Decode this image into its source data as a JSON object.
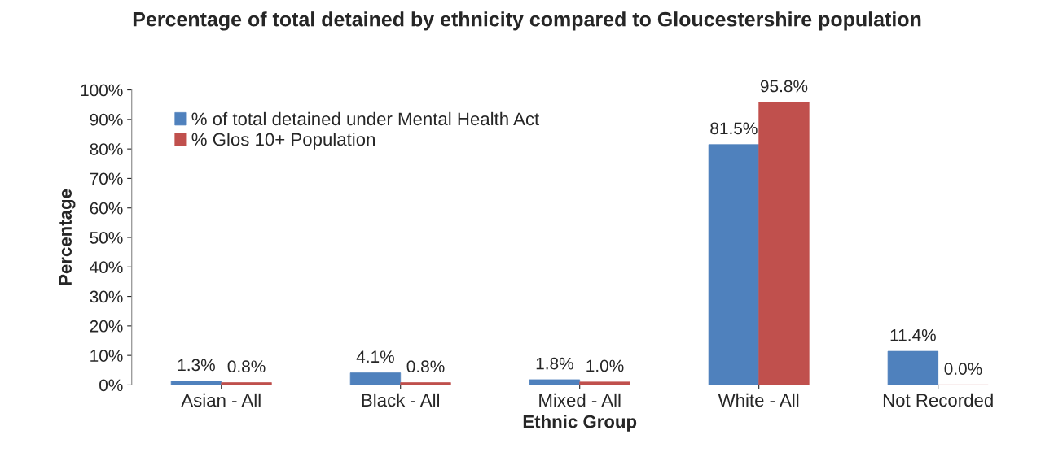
{
  "chart_data": {
    "type": "bar",
    "title": "Percentage of total detained by ethnicity compared to Gloucestershire population",
    "xlabel": "Ethnic Group",
    "ylabel": "Percentage",
    "categories": [
      "Asian - All",
      "Black - All",
      "Mixed - All",
      "White - All",
      "Not Recorded"
    ],
    "series": [
      {
        "name": "% of total detained under Mental Health Act",
        "color": "#4f81bd",
        "values": [
          1.3,
          4.1,
          1.8,
          81.5,
          11.4
        ],
        "value_labels": [
          "1.3%",
          "4.1%",
          "1.8%",
          "81.5%",
          "11.4%"
        ]
      },
      {
        "name": "% Glos 10+ Population",
        "color": "#c0504d",
        "values": [
          0.8,
          0.8,
          1.0,
          95.8,
          0.0
        ],
        "value_labels": [
          "0.8%",
          "0.8%",
          "1.0%",
          "95.8%",
          "0.0%"
        ]
      }
    ],
    "ylim": [
      0,
      100
    ],
    "yticks": [
      {
        "value": 0,
        "label": "0%"
      },
      {
        "value": 10,
        "label": "10%"
      },
      {
        "value": 20,
        "label": "20%"
      },
      {
        "value": 30,
        "label": "30%"
      },
      {
        "value": 40,
        "label": "40%"
      },
      {
        "value": 50,
        "label": "50%"
      },
      {
        "value": 60,
        "label": "60%"
      },
      {
        "value": 70,
        "label": "70%"
      },
      {
        "value": 80,
        "label": "80%"
      },
      {
        "value": 90,
        "label": "90%"
      },
      {
        "value": 100,
        "label": "100%"
      }
    ],
    "legend": "top left",
    "grid": false
  }
}
